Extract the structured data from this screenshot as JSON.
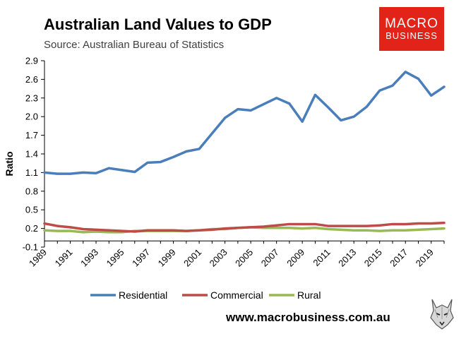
{
  "header": {
    "title": "Australian Land Values to GDP",
    "subtitle": "Source: Australian Bureau of Statistics"
  },
  "logo": {
    "line1": "MACRO",
    "line2": "BUSINESS"
  },
  "footer": {
    "website": "www.macrobusiness.com.au",
    "mascot_icon": "wolf-icon"
  },
  "colors": {
    "residential": "#4a7ebb",
    "commercial": "#be4b48",
    "rural": "#98b954",
    "logo_bg": "#e2231a",
    "axis": "#000000"
  },
  "chart_data": {
    "type": "line",
    "title": "Australian Land Values to GDP",
    "subtitle": "Source: Australian Bureau of Statistics",
    "xlabel": "",
    "ylabel": "Ratio",
    "ylim": [
      -0.1,
      2.9
    ],
    "yticks": [
      -0.1,
      0.2,
      0.5,
      0.8,
      1.1,
      1.4,
      1.7,
      2.0,
      2.3,
      2.6,
      2.9
    ],
    "ytick_labels": [
      "-0.1",
      "0.2",
      "0.5",
      "0.8",
      "1.1",
      "1.4",
      "1.7",
      "2.0",
      "2.3",
      "2.6",
      "2.9"
    ],
    "xtick_labels": [
      "1989",
      "1991",
      "1993",
      "1995",
      "1997",
      "1999",
      "2001",
      "2003",
      "2005",
      "2007",
      "2009",
      "2011",
      "2013",
      "2015",
      "2017",
      "2019"
    ],
    "grid": false,
    "legend_position": "bottom",
    "x": [
      1989,
      1990,
      1991,
      1992,
      1993,
      1994,
      1995,
      1996,
      1997,
      1998,
      1999,
      2000,
      2001,
      2002,
      2003,
      2004,
      2005,
      2006,
      2007,
      2008,
      2009,
      2010,
      2011,
      2012,
      2013,
      2014,
      2015,
      2016,
      2017,
      2018,
      2019,
      2020
    ],
    "series": [
      {
        "name": "Residential",
        "color": "#4a7ebb",
        "values": [
          1.1,
          1.08,
          1.08,
          1.1,
          1.09,
          1.17,
          1.14,
          1.11,
          1.26,
          1.27,
          1.35,
          1.44,
          1.48,
          1.73,
          1.98,
          2.12,
          2.1,
          2.2,
          2.3,
          2.21,
          1.92,
          2.35,
          2.15,
          1.94,
          2.0,
          2.16,
          2.42,
          2.5,
          2.72,
          2.61,
          2.34,
          2.48
        ]
      },
      {
        "name": "Commercial",
        "color": "#be4b48",
        "values": [
          0.28,
          0.24,
          0.22,
          0.19,
          0.18,
          0.17,
          0.16,
          0.15,
          0.17,
          0.17,
          0.17,
          0.16,
          0.17,
          0.18,
          0.2,
          0.21,
          0.22,
          0.23,
          0.25,
          0.27,
          0.27,
          0.27,
          0.24,
          0.24,
          0.24,
          0.24,
          0.25,
          0.27,
          0.27,
          0.28,
          0.28,
          0.29
        ]
      },
      {
        "name": "Rural",
        "color": "#98b954",
        "values": [
          0.17,
          0.16,
          0.16,
          0.14,
          0.15,
          0.14,
          0.14,
          0.16,
          0.16,
          0.16,
          0.16,
          0.16,
          0.17,
          0.19,
          0.19,
          0.21,
          0.22,
          0.21,
          0.21,
          0.21,
          0.2,
          0.21,
          0.19,
          0.18,
          0.17,
          0.17,
          0.16,
          0.17,
          0.17,
          0.18,
          0.19,
          0.2
        ]
      }
    ]
  }
}
